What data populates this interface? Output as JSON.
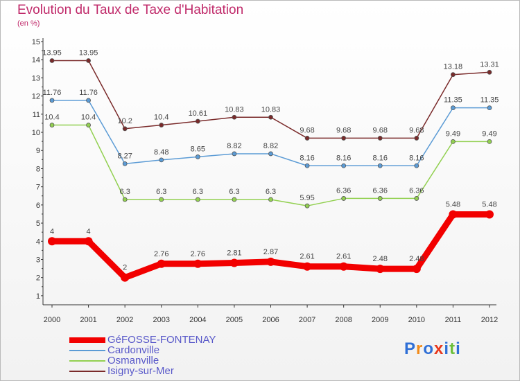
{
  "title": "Evolution du Taux de Taxe d'Habitation",
  "subtitle": "(en %)",
  "logo": {
    "letters": [
      "P",
      "r",
      "o",
      "x",
      "i",
      "t",
      "i"
    ],
    "colors": [
      "#2f6fd6",
      "#f28b1a",
      "#2f6fd6",
      "#e8371c",
      "#2f6fd6",
      "#6cbf3a",
      "#2f6fd6"
    ]
  },
  "chart_data": {
    "type": "line",
    "title": "Evolution du Taux de Taxe d'Habitation",
    "ylabel": "(en %)",
    "xlabel": "",
    "ylim": [
      1,
      15
    ],
    "yticks": [
      "1",
      "2",
      "3",
      "4",
      "5",
      "6",
      "7",
      "8",
      "9",
      "10",
      "11",
      "12",
      "13",
      "14",
      "15"
    ],
    "categories": [
      "2000",
      "2001",
      "2002",
      "2003",
      "2004",
      "2005",
      "2006",
      "2007",
      "2008",
      "2009",
      "2010",
      "2011",
      "2012"
    ],
    "series": [
      {
        "name": "GéFOSSE-FONTENAY",
        "color": "#f20000",
        "values": [
          4,
          4,
          2,
          2.76,
          2.76,
          2.81,
          2.87,
          2.61,
          2.61,
          2.48,
          2.48,
          5.48,
          5.48
        ],
        "labels": [
          "4",
          "4",
          "2",
          "2.76",
          "2.76",
          "2.81",
          "2.87",
          "2.61",
          "2.61",
          "2.48",
          "2.48",
          "5.48",
          "5.48"
        ]
      },
      {
        "name": "Cardonville",
        "color": "#5b9bd5",
        "values": [
          11.76,
          11.76,
          8.27,
          8.48,
          8.65,
          8.82,
          8.82,
          8.16,
          8.16,
          8.16,
          8.16,
          11.35,
          11.35
        ],
        "labels": [
          "11.76",
          "11.76",
          "8.27",
          "8.48",
          "8.65",
          "8.82",
          "8.82",
          "8.16",
          "8.16",
          "8.16",
          "8.16",
          "11.35",
          "11.35"
        ]
      },
      {
        "name": "Osmanville",
        "color": "#92d050",
        "values": [
          10.4,
          10.4,
          6.3,
          6.3,
          6.3,
          6.3,
          6.3,
          5.95,
          6.36,
          6.36,
          6.36,
          9.49,
          9.49
        ],
        "labels": [
          "10.4",
          "10.4",
          "6.3",
          "6.3",
          "6.3",
          "6.3",
          "6.3",
          "5.95",
          "6.36",
          "6.36",
          "6.36",
          "9.49",
          "9.49"
        ]
      },
      {
        "name": "Isigny-sur-Mer",
        "color": "#7a2a2a",
        "values": [
          13.95,
          13.95,
          10.2,
          10.4,
          10.61,
          10.83,
          10.83,
          9.68,
          9.68,
          9.68,
          9.68,
          13.18,
          13.31
        ],
        "labels": [
          "13.95",
          "13.95",
          "10.2",
          "10.4",
          "10.61",
          "10.83",
          "10.83",
          "9.68",
          "9.68",
          "9.68",
          "9.68",
          "13.18",
          "13.31"
        ]
      }
    ],
    "legend_position": "bottom-left",
    "grid": false
  }
}
